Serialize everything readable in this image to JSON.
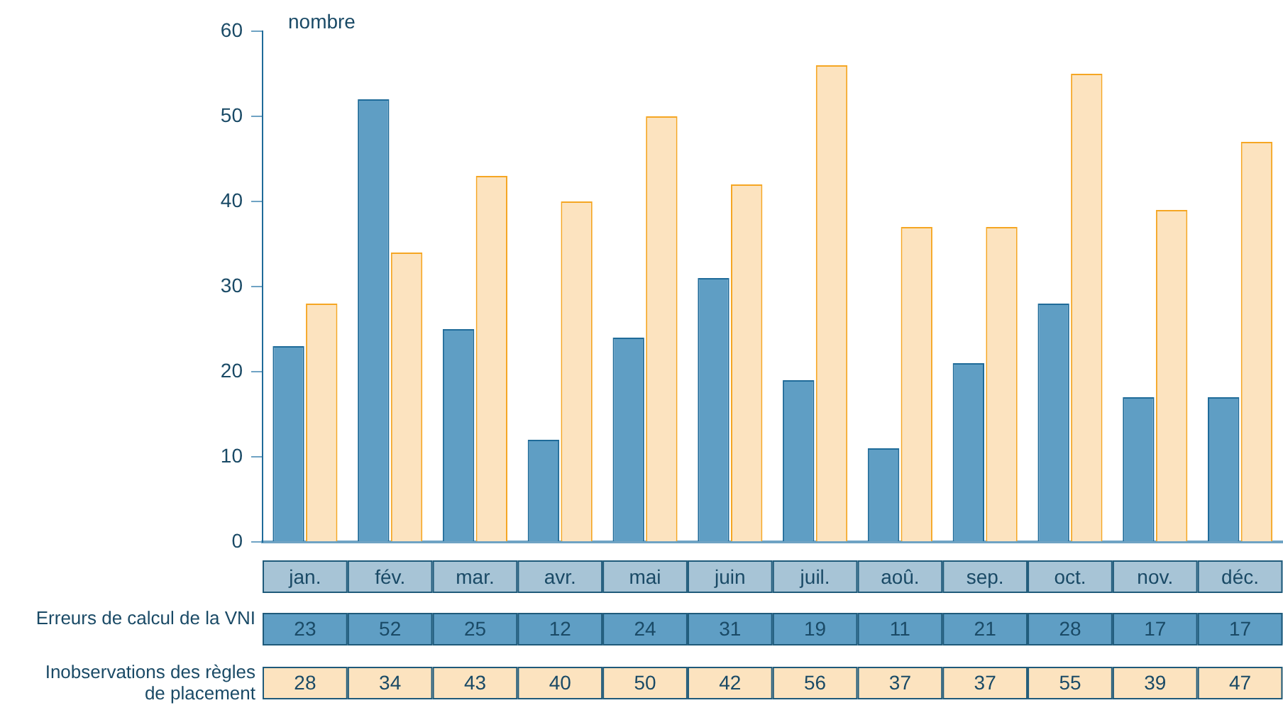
{
  "chart_data": {
    "type": "bar",
    "ylabel": "nombre",
    "categories": [
      "jan.",
      "fév.",
      "mar.",
      "avr.",
      "mai",
      "juin",
      "juil.",
      "aoû.",
      "sep.",
      "oct.",
      "nov.",
      "déc."
    ],
    "series": [
      {
        "name": "Erreurs de calcul de la VNI",
        "color": "#5f9ec4",
        "values": [
          23,
          52,
          25,
          12,
          24,
          31,
          19,
          11,
          21,
          28,
          17,
          17
        ]
      },
      {
        "name": "Inobservations des règles de placement",
        "color": "#fce3bf",
        "values": [
          28,
          34,
          43,
          40,
          50,
          42,
          56,
          37,
          37,
          55,
          39,
          47
        ]
      }
    ],
    "ylim": [
      0,
      60
    ],
    "yticks": [
      0,
      10,
      20,
      30,
      40,
      50,
      60
    ],
    "grid": false,
    "legend": "left",
    "data_labels": true
  }
}
